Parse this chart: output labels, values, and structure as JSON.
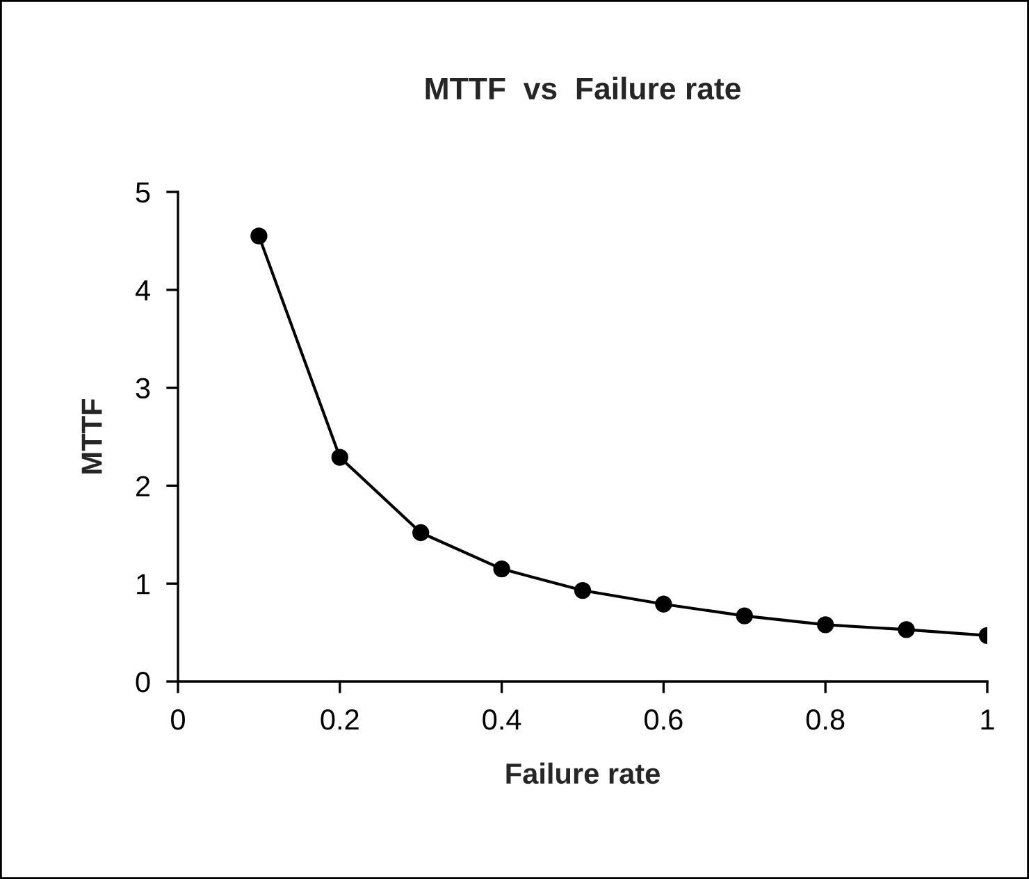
{
  "chart_data": {
    "type": "line",
    "title": "MTTF  vs  Failure rate",
    "xlabel": "Failure rate",
    "ylabel": "MTTF",
    "x": [
      0.1,
      0.2,
      0.3,
      0.4,
      0.5,
      0.6,
      0.7,
      0.8,
      0.9,
      1.0
    ],
    "series": [
      {
        "color": "#000000",
        "values": [
          4.55,
          2.29,
          1.52,
          1.15,
          0.93,
          0.79,
          0.67,
          0.58,
          0.53,
          0.47
        ]
      }
    ],
    "xlim": [
      0,
      1
    ],
    "xticks": [
      0,
      0.2,
      0.4,
      0.6,
      0.8,
      1
    ],
    "ylim": [
      0,
      5
    ],
    "yticks": [
      0,
      1,
      2,
      3,
      4,
      5
    ],
    "marker": "circle",
    "line_style": "solid",
    "grid": false,
    "legend": false
  }
}
